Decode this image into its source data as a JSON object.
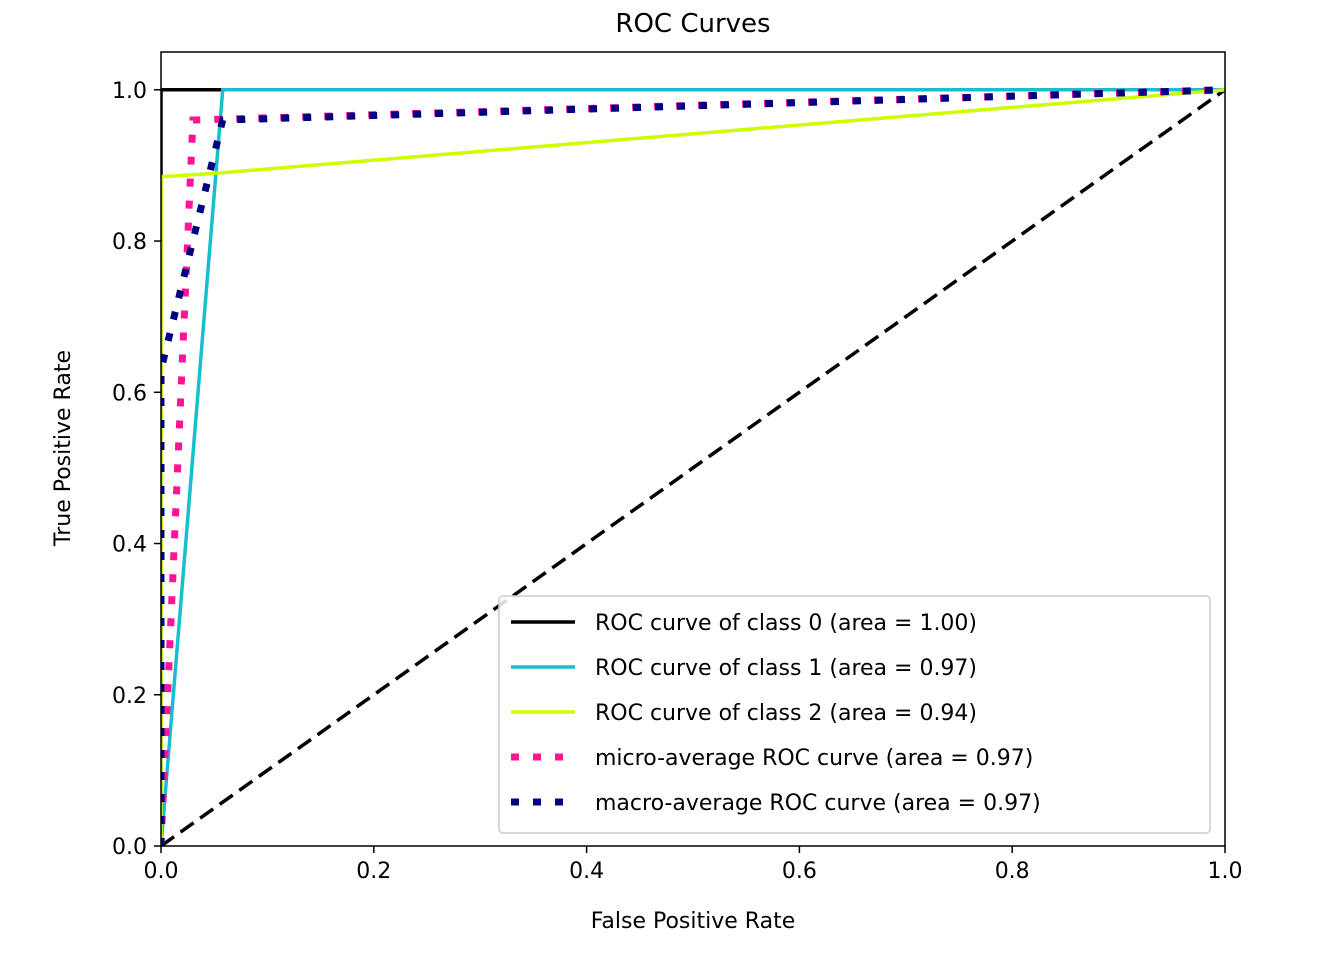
{
  "chart_data": {
    "type": "line",
    "title": "ROC Curves",
    "xlabel": "False Positive Rate",
    "ylabel": "True Positive Rate",
    "xlim": [
      0.0,
      1.0
    ],
    "ylim": [
      0.0,
      1.05
    ],
    "grid": false,
    "legend_position": "lower right",
    "xticks": [
      0.0,
      0.2,
      0.4,
      0.6,
      0.8,
      1.0
    ],
    "xtick_labels": [
      "0.0",
      "0.2",
      "0.4",
      "0.6",
      "0.8",
      "1.0"
    ],
    "yticks": [
      0.0,
      0.2,
      0.4,
      0.6,
      0.8,
      1.0
    ],
    "ytick_labels": [
      "0.0",
      "0.2",
      "0.4",
      "0.6",
      "0.8",
      "1.0"
    ],
    "series": [
      {
        "name": "ROC curve of class 0 (area = 1.00)",
        "color": "#000000",
        "style": "solid",
        "x": [
          0.0,
          0.0,
          1.0
        ],
        "y": [
          0.0,
          1.0,
          1.0
        ]
      },
      {
        "name": "ROC curve of class 1 (area = 0.97)",
        "color": "#17becf",
        "style": "solid",
        "x": [
          0.0,
          0.058,
          1.0
        ],
        "y": [
          0.0,
          1.0,
          1.0
        ]
      },
      {
        "name": "ROC curve of class 2 (area = 0.94)",
        "color": "#ccff00",
        "style": "solid",
        "x": [
          0.0,
          0.0,
          0.055,
          1.0
        ],
        "y": [
          0.0,
          0.885,
          0.89,
          1.0
        ]
      },
      {
        "name": "micro-average ROC curve (area = 0.97)",
        "color": "#ff1493",
        "style": "dotted",
        "x": [
          0.0,
          0.03,
          1.0
        ],
        "y": [
          0.0,
          0.96,
          1.0
        ]
      },
      {
        "name": "macro-average ROC curve (area = 0.97)",
        "color": "#000080",
        "style": "dotted",
        "x": [
          0.0,
          0.0,
          0.058,
          1.0
        ],
        "y": [
          0.0,
          0.63,
          0.96,
          1.0
        ]
      }
    ],
    "reference_line": {
      "color": "#000000",
      "style": "dashed",
      "x": [
        0.0,
        1.0
      ],
      "y": [
        0.0,
        1.0
      ]
    }
  }
}
